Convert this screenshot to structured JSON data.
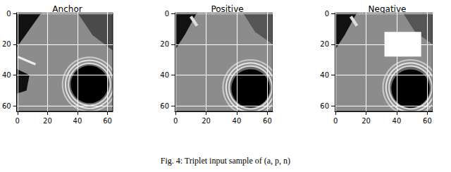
{
  "chart_data": [
    {
      "type": "image",
      "title": "Anchor",
      "xlim": [
        -0.5,
        63.5
      ],
      "ylim": [
        63.5,
        -0.5
      ],
      "xticks": [
        0,
        20,
        40,
        60
      ],
      "yticks": [
        0,
        20,
        40,
        60
      ],
      "grid": true
    },
    {
      "type": "image",
      "title": "Positive",
      "xlim": [
        -0.5,
        63.5
      ],
      "ylim": [
        63.5,
        -0.5
      ],
      "xticks": [
        0,
        20,
        40,
        60
      ],
      "yticks": [
        0,
        20,
        40,
        60
      ],
      "grid": true
    },
    {
      "type": "image",
      "title": "Negative",
      "xlim": [
        -0.5,
        63.5
      ],
      "ylim": [
        63.5,
        -0.5
      ],
      "xticks": [
        0,
        20,
        40,
        60
      ],
      "yticks": [
        0,
        20,
        40,
        60
      ],
      "grid": true
    }
  ],
  "caption": "Fig. 4: Triplet input sample of (a, p, n)"
}
